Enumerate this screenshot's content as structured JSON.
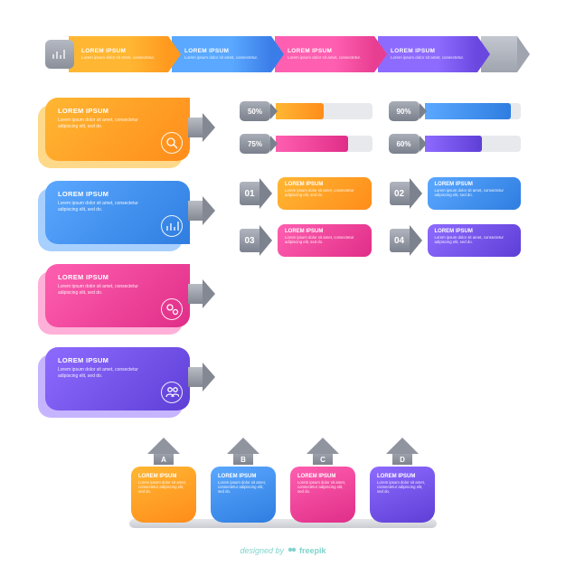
{
  "placeholder": {
    "title": "LOREM IPSUM",
    "body2": "Lorem ipsum dolor sit amet, consectetur.",
    "body3": "Lorem ipsum dolor sit amet, consectetur adipiscing elit, sed do."
  },
  "arrows_row": {
    "icon_badge_gradient": [
      "#b5b9c2",
      "#8a8f9a"
    ],
    "icon": "bar-chart-icon",
    "steps": [
      {
        "gradient": [
          "#ffb733",
          "#ff9a1f"
        ],
        "arrow_color": "#ff9a1f"
      },
      {
        "gradient": [
          "#5aa8ff",
          "#3b7de8"
        ],
        "arrow_color": "#3b7de8"
      },
      {
        "gradient": [
          "#ff5fb0",
          "#e83e92"
        ],
        "arrow_color": "#e83e92"
      },
      {
        "gradient": [
          "#8e6bff",
          "#6a48e0"
        ],
        "arrow_color": "#6a48e0"
      }
    ],
    "tail_gradient": [
      "#c3c7cf",
      "#9fa4af"
    ]
  },
  "info_boxes": [
    {
      "gradient": [
        "#ffb733",
        "#ff8c1a"
      ],
      "shadow": "#ffd98a",
      "icon": "magnifier-icon",
      "shape": "shape-notch-top-right"
    },
    {
      "gradient": [
        "#5aa8ff",
        "#2f7de0"
      ],
      "shadow": "#a8d0ff",
      "icon": "bar-chart-icon",
      "shape": "shape-bubble-right"
    },
    {
      "gradient": [
        "#ff5fb0",
        "#e02e88"
      ],
      "shadow": "#ffb0d8",
      "icon": "gears-icon",
      "shape": "shape-bubble-right2"
    },
    {
      "gradient": [
        "#8e6bff",
        "#5e3fd6"
      ],
      "shadow": "#c6b4ff",
      "icon": "users-icon",
      "shape": "shape-all-round"
    }
  ],
  "progress_bars": [
    {
      "value": 50,
      "label": "50%",
      "gradient": [
        "#ffb733",
        "#ff8c1a"
      ]
    },
    {
      "value": 90,
      "label": "90%",
      "gradient": [
        "#5aa8ff",
        "#2f7de0"
      ]
    },
    {
      "value": 75,
      "label": "75%",
      "gradient": [
        "#ff5fb0",
        "#e02e88"
      ]
    },
    {
      "value": 60,
      "label": "60%",
      "gradient": [
        "#8e6bff",
        "#5e3fd6"
      ]
    }
  ],
  "option_cards": [
    {
      "num": "01",
      "gradient": [
        "#ffb733",
        "#ff8c1a"
      ]
    },
    {
      "num": "02",
      "gradient": [
        "#5aa8ff",
        "#2f7de0"
      ]
    },
    {
      "num": "03",
      "gradient": [
        "#ff5fb0",
        "#e02e88"
      ]
    },
    {
      "num": "04",
      "gradient": [
        "#8e6bff",
        "#5e3fd6"
      ]
    }
  ],
  "letter_cols": [
    {
      "letter": "A",
      "gradient": [
        "#ffb733",
        "#ff8c1a"
      ]
    },
    {
      "letter": "B",
      "gradient": [
        "#5aa8ff",
        "#2f7de0"
      ]
    },
    {
      "letter": "C",
      "gradient": [
        "#ff5fb0",
        "#e02e88"
      ]
    },
    {
      "letter": "D",
      "gradient": [
        "#8e6bff",
        "#5e3fd6"
      ]
    }
  ],
  "credit": {
    "prefix": "designed by ",
    "brand": "freepik"
  },
  "colors": {
    "badge_gray_top": "#a8adb7",
    "badge_gray_bottom": "#7a808c",
    "track": "#e8e9ed",
    "credit_color": "#7fd4cc"
  }
}
